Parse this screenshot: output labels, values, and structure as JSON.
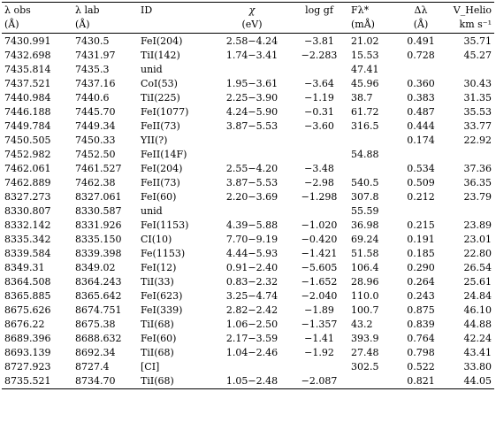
{
  "headers_row1": [
    "λ obs",
    "λ lab",
    "ID",
    "χ",
    "log gf",
    "Fλ*",
    "Δλ",
    "V_Helio"
  ],
  "headers_row2": [
    "(Å)",
    "(Å)",
    "",
    "(eV)",
    "",
    "(mÅ)",
    "(Å)",
    "km s⁻¹"
  ],
  "rows": [
    [
      "7430.991",
      "7430.5",
      "FeI(204)",
      "2.58−4.24",
      "−3.81",
      "21.02",
      "0.491",
      "35.71"
    ],
    [
      "7432.698",
      "7431.97",
      "TiI(142)",
      "1.74−3.41",
      "−2.283",
      "15.53",
      "0.728",
      "45.27"
    ],
    [
      "7435.814",
      "7435.3",
      "unid",
      "",
      "",
      "47.41",
      "",
      ""
    ],
    [
      "7437.521",
      "7437.16",
      "CoI(53)",
      "1.95−3.61",
      "−3.64",
      "45.96",
      "0.360",
      "30.43"
    ],
    [
      "7440.984",
      "7440.6",
      "TiI(225)",
      "2.25−3.90",
      "−1.19",
      "38.7",
      "0.383",
      "31.35"
    ],
    [
      "7446.188",
      "7445.70",
      "FeI(1077)",
      "4.24−5.90",
      "−0.31",
      "61.72",
      "0.487",
      "35.53"
    ],
    [
      "7449.784",
      "7449.34",
      "FeII(73)",
      "3.87−5.53",
      "−3.60",
      "316.5",
      "0.444",
      "33.77"
    ],
    [
      "7450.505",
      "7450.33",
      "YII(?)",
      "",
      "",
      "",
      "0.174",
      "22.92"
    ],
    [
      "7452.982",
      "7452.50",
      "FeII(14F)",
      "",
      "",
      "54.88",
      "",
      ""
    ],
    [
      "7462.061",
      "7461.527",
      "FeI(204)",
      "2.55−4.20",
      "−3.48",
      "",
      "0.534",
      "37.36"
    ],
    [
      "7462.889",
      "7462.38",
      "FeII(73)",
      "3.87−5.53",
      "−2.98",
      "540.5",
      "0.509",
      "36.35"
    ],
    [
      "8327.273",
      "8327.061",
      "FeI(60)",
      "2.20−3.69",
      "−1.298",
      "307.8",
      "0.212",
      "23.79"
    ],
    [
      "8330.807",
      "8330.587",
      "unid",
      "",
      "",
      "55.59",
      "",
      ""
    ],
    [
      "8332.142",
      "8331.926",
      "FeI(1153)",
      "4.39−5.88",
      "−1.020",
      "36.98",
      "0.215",
      "23.89"
    ],
    [
      "8335.342",
      "8335.150",
      "CI(10)",
      "7.70−9.19",
      "−0.420",
      "69.24",
      "0.191",
      "23.01"
    ],
    [
      "8339.584",
      "8339.398",
      "Fe(1153)",
      "4.44−5.93",
      "−1.421",
      "51.58",
      "0.185",
      "22.80"
    ],
    [
      "8349.31",
      "8349.02",
      "FeI(12)",
      "0.91−2.40",
      "−5.605",
      "106.4",
      "0.290",
      "26.54"
    ],
    [
      "8364.508",
      "8364.243",
      "TiI(33)",
      "0.83−2.32",
      "−1.652",
      "28.96",
      "0.264",
      "25.61"
    ],
    [
      "8365.885",
      "8365.642",
      "FeI(623)",
      "3.25−4.74",
      "−2.040",
      "110.0",
      "0.243",
      "24.84"
    ],
    [
      "8675.626",
      "8674.751",
      "FeI(339)",
      "2.82−2.42",
      "−1.89",
      "100.7",
      "0.875",
      "46.10"
    ],
    [
      "8676.22",
      "8675.38",
      "TiI(68)",
      "1.06−2.50",
      "−1.357",
      "43.2",
      "0.839",
      "44.88"
    ],
    [
      "8689.396",
      "8688.632",
      "FeI(60)",
      "2.17−3.59",
      "−1.41",
      "393.9",
      "0.764",
      "42.24"
    ],
    [
      "8693.139",
      "8692.34",
      "TiI(68)",
      "1.04−2.46",
      "−1.92",
      "27.48",
      "0.798",
      "43.41"
    ],
    [
      "8727.923",
      "8727.4",
      "[CI]",
      "",
      "",
      "302.5",
      "0.522",
      "33.80"
    ],
    [
      "8735.521",
      "8734.70",
      "TiI(68)",
      "1.05−2.48",
      "−2.087",
      "",
      "0.821",
      "44.05"
    ]
  ]
}
